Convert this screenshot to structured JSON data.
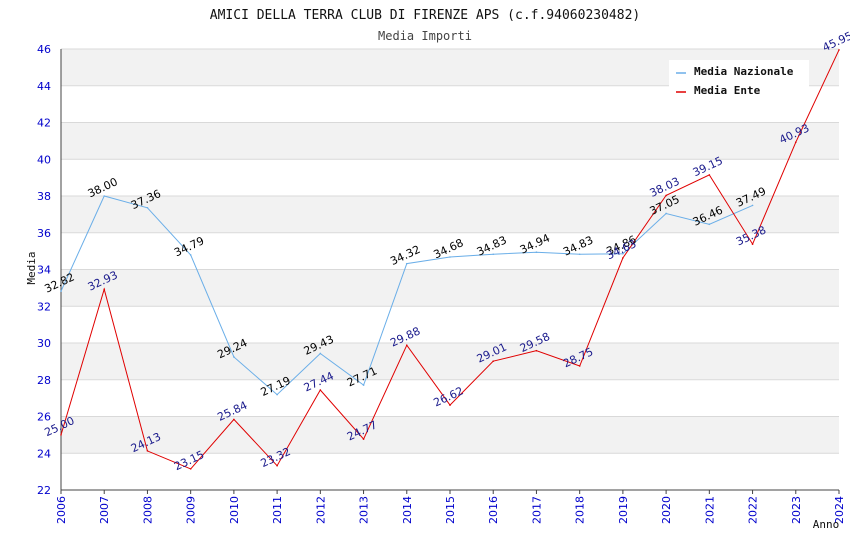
{
  "chart_data": {
    "type": "line",
    "title": "AMICI DELLA TERRA CLUB DI FIRENZE APS (c.f.94060230482)",
    "subtitle": "Media Importi",
    "xlabel": "Anno",
    "ylabel": "Media",
    "ylim": [
      22,
      46
    ],
    "yticks": [
      22,
      24,
      26,
      28,
      30,
      32,
      34,
      36,
      38,
      40,
      42,
      44,
      46
    ],
    "x": [
      "2006",
      "2007",
      "2008",
      "2009",
      "2010",
      "2011",
      "2012",
      "2013",
      "2014",
      "2015",
      "2016",
      "2017",
      "2018",
      "2019",
      "2020",
      "2021",
      "2022",
      "2023",
      "2024"
    ],
    "grid": true,
    "legend_position": "top-right",
    "series": [
      {
        "name": "Media Nazionale",
        "color": "#6aaee8",
        "label_color": "#000000",
        "values": [
          32.82,
          38.0,
          37.36,
          34.79,
          29.24,
          27.19,
          29.43,
          27.71,
          34.32,
          34.68,
          34.83,
          34.94,
          34.83,
          34.86,
          37.05,
          36.46,
          37.49,
          null,
          null
        ],
        "labels": [
          "32.82",
          "38.00",
          "37.36",
          "34.79",
          "29.24",
          "27.19",
          "29.43",
          "27.71",
          "34.32",
          "34.68",
          "34.83",
          "34.94",
          "34.83",
          "34.86",
          "37.05",
          "36.46",
          "37.49",
          "",
          ""
        ]
      },
      {
        "name": "Media Ente",
        "color": "#e00000",
        "label_color": "#1a1a8c",
        "values": [
          25.0,
          32.93,
          24.13,
          23.15,
          25.84,
          23.32,
          27.44,
          24.77,
          29.88,
          26.62,
          29.01,
          29.58,
          28.75,
          34.63,
          38.03,
          39.15,
          35.38,
          40.93,
          45.95
        ],
        "labels": [
          "25.00",
          "32.93",
          "24.13",
          "23.15",
          "25.84",
          "23.32",
          "27.44",
          "24.77",
          "29.88",
          "26.62",
          "29.01",
          "29.58",
          "28.75",
          "34.63",
          "38.03",
          "39.15",
          "35.38",
          "40.93",
          "45.95"
        ]
      }
    ],
    "colors": {
      "tick_text": "#0000cc",
      "band": "#f2f2f2",
      "grid": "#d9d9d9"
    }
  }
}
